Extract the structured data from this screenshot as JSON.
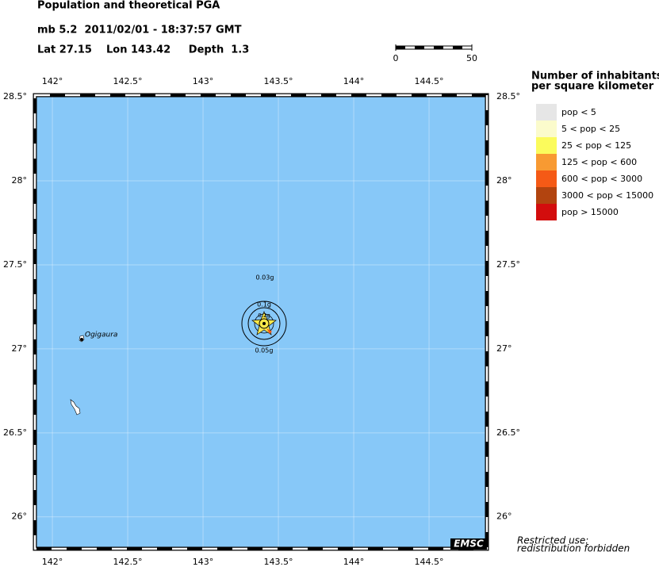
{
  "header": {
    "title": "Population and theoretical PGA",
    "event": "mb 5.2  2011/02/01 - 18:37:57 GMT",
    "location": "Lat 27.15    Lon 143.42     Depth  1.3"
  },
  "scale_bar": {
    "labels": [
      "0",
      "50"
    ]
  },
  "map": {
    "lonlim": [
      141.884,
      144.884
    ],
    "latlim": [
      25.81,
      28.51
    ],
    "lon_ticks": [
      {
        "value": 142,
        "label": "142°"
      },
      {
        "value": 142.5,
        "label": "142.5°"
      },
      {
        "value": 143,
        "label": "143°"
      },
      {
        "value": 143.5,
        "label": "143.5°"
      },
      {
        "value": 144,
        "label": "144°"
      },
      {
        "value": 144.5,
        "label": "144.5°"
      }
    ],
    "lat_ticks": [
      {
        "value": 28.5,
        "label": "28.5°"
      },
      {
        "value": 28,
        "label": "28°"
      },
      {
        "value": 27.5,
        "label": "27.5°"
      },
      {
        "value": 27,
        "label": "27°"
      },
      {
        "value": 26.5,
        "label": "26.5°"
      },
      {
        "value": 26,
        "label": "26°"
      }
    ],
    "grid": true,
    "sea_color": "#87c8f8",
    "pga_labels": [
      "0.03g",
      "0.1g",
      "0.2g",
      "0.05g"
    ],
    "place": "Ogigaura",
    "credit": "EMSC"
  },
  "legend": {
    "title": [
      "Number of inhabitants",
      "per square kilometer"
    ],
    "items": [
      {
        "label": "pop < 5",
        "color": "#e6e6e6"
      },
      {
        "label": "5 < pop < 25",
        "color": "#fbfbcc"
      },
      {
        "label": "25 < pop < 125",
        "color": "#fbfb5c"
      },
      {
        "label": "125 < pop < 600",
        "color": "#f89a32"
      },
      {
        "label": "600 < pop < 3000",
        "color": "#f55a16"
      },
      {
        "label": "3000 < pop < 15000",
        "color": "#b2440f"
      },
      {
        "label": "pop > 15000",
        "color": "#d30d0d"
      }
    ]
  },
  "footer": [
    "Restricted use:",
    "redistribution forbidden"
  ]
}
